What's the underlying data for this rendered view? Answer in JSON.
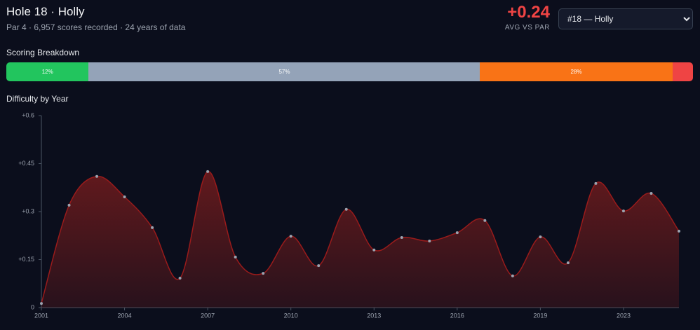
{
  "header": {
    "title": "Hole 18 · Holly",
    "subtitle": "Par 4 · 6,957 scores recorded · 24 years of data",
    "stat_value": "+0.24",
    "stat_label": "AVG VS PAR",
    "select": "#18 — Holly"
  },
  "chart_data": [
    {
      "type": "stacked-bar",
      "title": "Scoring Breakdown",
      "values": [
        12,
        57,
        28,
        3
      ],
      "value_labels": [
        "12%",
        "57%",
        "28%",
        null
      ],
      "colors": [
        "#22c55e",
        "#94a3b8",
        "#f97316",
        "#ef4444"
      ],
      "xlim": [
        0,
        100
      ]
    },
    {
      "type": "area",
      "title": "Difficulty by Year",
      "categories": [
        "2001",
        null,
        null,
        "2004",
        null,
        null,
        "2007",
        null,
        null,
        "2010",
        null,
        null,
        "2013",
        null,
        null,
        "2016",
        null,
        null,
        "2019",
        null,
        null,
        "2023",
        null,
        null
      ],
      "values": [
        0.013,
        0.32,
        0.41,
        0.346,
        0.25,
        0.092,
        0.425,
        0.158,
        0.107,
        0.223,
        0.131,
        0.307,
        0.18,
        0.219,
        0.208,
        0.234,
        0.272,
        0.099,
        0.221,
        0.14,
        0.388,
        0.302,
        0.357,
        0.239
      ],
      "color": "#7f1d1d",
      "point_color": "#9ca3af",
      "ylim": [
        0,
        0.6
      ],
      "yticks": [
        0,
        {
          "value": 0.15,
          "label": "+0.15"
        },
        {
          "value": 0.3,
          "label": "+0.3"
        },
        {
          "value": 0.45,
          "label": "+0.45"
        },
        {
          "value": 0.6,
          "label": "+0.6"
        }
      ]
    }
  ]
}
